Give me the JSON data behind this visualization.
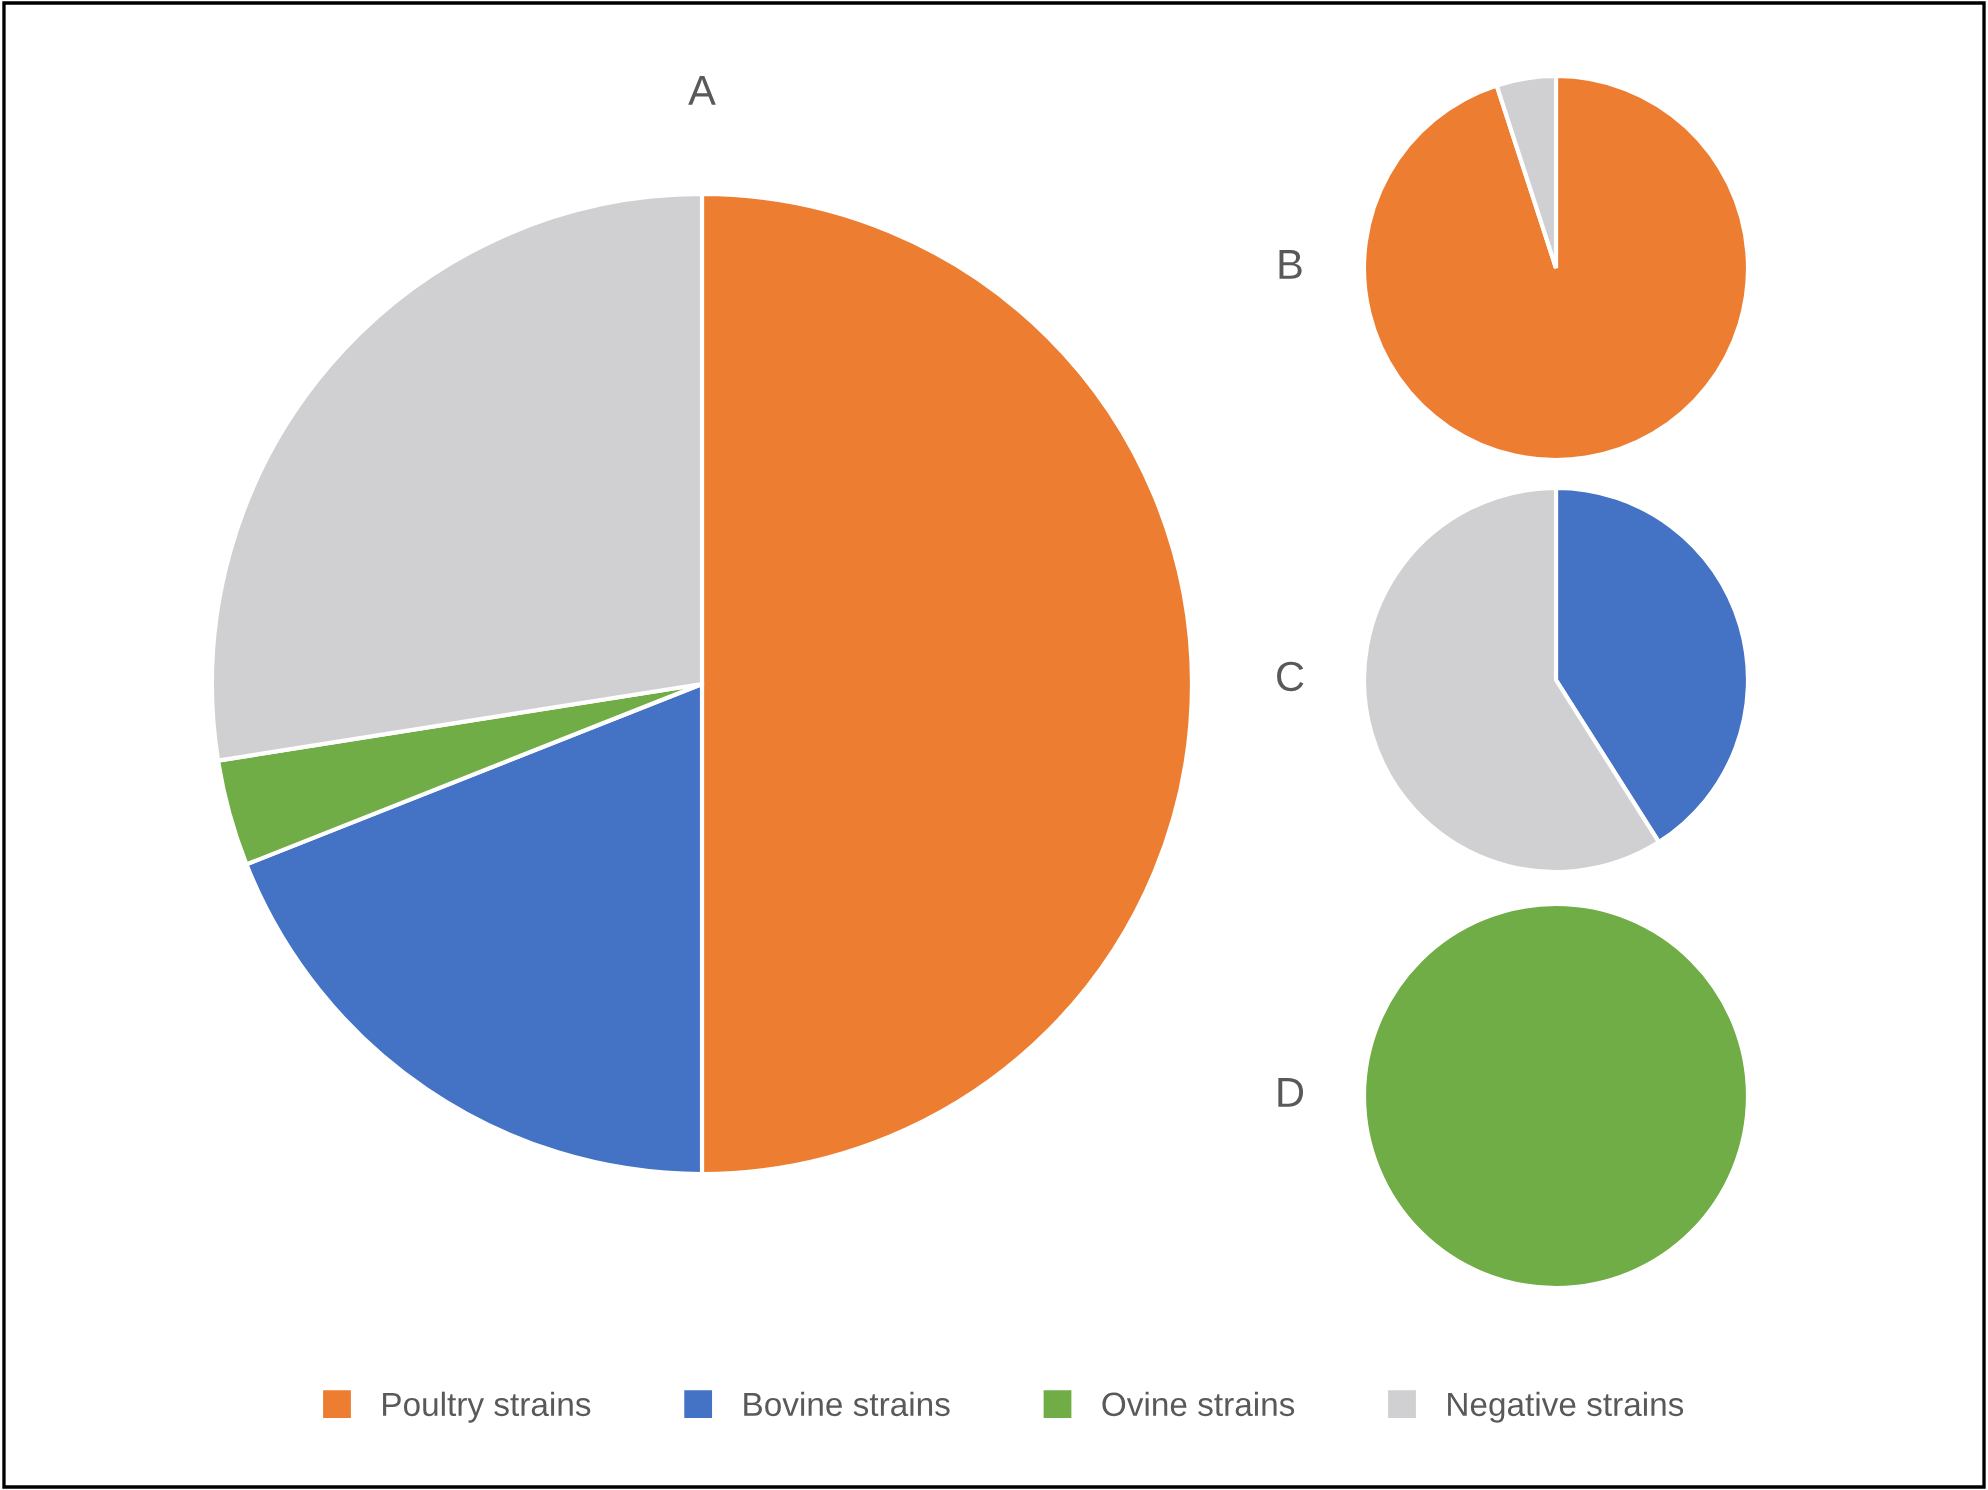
{
  "chart_data": [
    {
      "type": "pie",
      "title": "A",
      "categories": [
        "Poultry strains",
        "Bovine strains",
        "Ovine strains",
        "Negative strains"
      ],
      "values": [
        50,
        19,
        3.5,
        27.5
      ],
      "colors": [
        "#ed7d31",
        "#4472c4",
        "#70ad47",
        "#d0cfd1"
      ],
      "legend": "bottom"
    },
    {
      "type": "pie",
      "title": "B",
      "categories": [
        null,
        null
      ],
      "values": [
        95,
        5
      ],
      "colors": [
        "#ed7d31",
        "#d0cfd1"
      ]
    },
    {
      "type": "pie",
      "title": "C",
      "categories": [
        null,
        null
      ],
      "values": [
        41,
        59
      ],
      "colors": [
        "#4472c4",
        "#d0cfd1"
      ]
    },
    {
      "type": "pie",
      "title": "D",
      "categories": [
        null
      ],
      "values": [
        100
      ],
      "colors": [
        "#70ad47"
      ]
    }
  ]
}
